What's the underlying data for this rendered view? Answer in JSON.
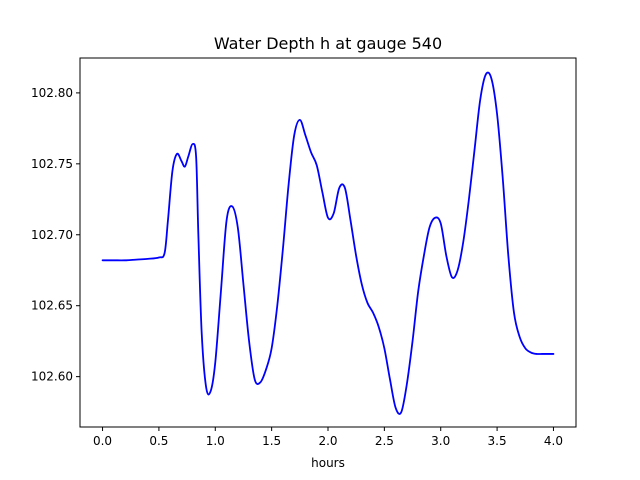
{
  "chart_data": {
    "type": "line",
    "title": "Water Depth h at gauge 540",
    "xlabel": "hours",
    "ylabel": "",
    "xlim": [
      -0.2,
      4.2
    ],
    "ylim": [
      102.5645,
      102.8246
    ],
    "x_ticks": [
      {
        "value": 0.0,
        "label": "0.0"
      },
      {
        "value": 0.5,
        "label": "0.5"
      },
      {
        "value": 1.0,
        "label": "1.0"
      },
      {
        "value": 1.5,
        "label": "1.5"
      },
      {
        "value": 2.0,
        "label": "2.0"
      },
      {
        "value": 2.5,
        "label": "2.5"
      },
      {
        "value": 3.0,
        "label": "3.0"
      },
      {
        "value": 3.5,
        "label": "3.5"
      },
      {
        "value": 4.0,
        "label": "4.0"
      }
    ],
    "y_ticks": [
      {
        "value": 102.6,
        "label": "102.60"
      },
      {
        "value": 102.65,
        "label": "102.65"
      },
      {
        "value": 102.7,
        "label": "102.70"
      },
      {
        "value": 102.75,
        "label": "102.75"
      },
      {
        "value": 102.8,
        "label": "102.80"
      }
    ],
    "grid": false,
    "legend": "none",
    "series": [
      {
        "color": "#0000ff",
        "x": [
          0.0,
          0.1,
          0.2,
          0.3,
          0.4,
          0.5,
          0.55,
          0.58,
          0.62,
          0.66,
          0.7,
          0.73,
          0.76,
          0.8,
          0.83,
          0.85,
          0.88,
          0.92,
          0.96,
          1.0,
          1.05,
          1.1,
          1.15,
          1.2,
          1.25,
          1.3,
          1.35,
          1.4,
          1.45,
          1.5,
          1.55,
          1.6,
          1.65,
          1.7,
          1.75,
          1.8,
          1.85,
          1.9,
          1.95,
          2.0,
          2.05,
          2.1,
          2.15,
          2.2,
          2.25,
          2.3,
          2.35,
          2.4,
          2.45,
          2.5,
          2.55,
          2.6,
          2.65,
          2.7,
          2.75,
          2.8,
          2.85,
          2.9,
          2.95,
          3.0,
          3.05,
          3.1,
          3.15,
          3.2,
          3.25,
          3.3,
          3.35,
          3.4,
          3.45,
          3.5,
          3.55,
          3.6,
          3.65,
          3.7,
          3.75,
          3.8,
          3.85,
          3.9,
          3.95,
          4.0
        ],
        "y": [
          102.682,
          102.682,
          102.682,
          102.6825,
          102.683,
          102.684,
          102.687,
          102.71,
          102.745,
          102.757,
          102.752,
          102.748,
          102.755,
          102.764,
          102.755,
          102.7,
          102.63,
          102.592,
          102.59,
          102.61,
          102.66,
          102.71,
          102.72,
          102.705,
          102.665,
          102.625,
          102.598,
          102.596,
          102.605,
          102.62,
          102.65,
          102.69,
          102.735,
          102.77,
          102.781,
          102.77,
          102.758,
          102.749,
          102.73,
          102.712,
          102.715,
          102.733,
          102.733,
          102.71,
          102.685,
          102.665,
          102.652,
          102.645,
          102.635,
          102.62,
          102.598,
          102.578,
          102.575,
          102.595,
          102.625,
          102.66,
          102.685,
          102.705,
          102.712,
          102.708,
          102.685,
          102.67,
          102.675,
          102.695,
          102.725,
          102.76,
          102.795,
          102.813,
          102.81,
          102.785,
          102.74,
          102.685,
          102.645,
          102.628,
          102.62,
          102.617,
          102.616,
          102.616,
          102.616,
          102.616
        ]
      }
    ]
  }
}
